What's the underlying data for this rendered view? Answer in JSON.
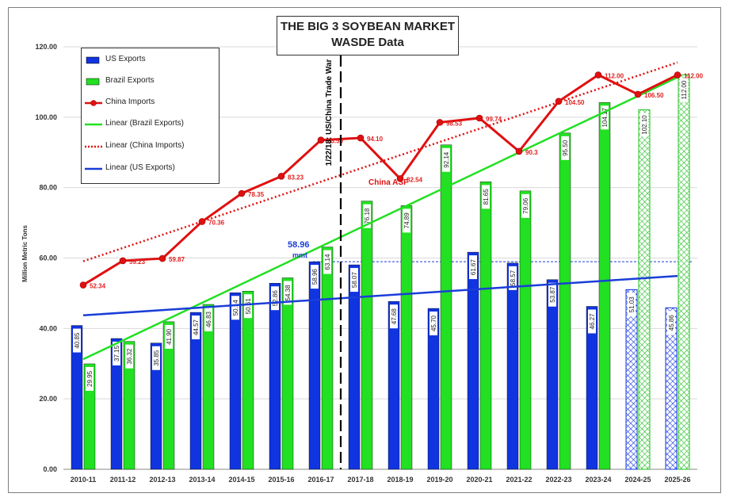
{
  "title": {
    "line1": "THE BIG 3 SOYBEAN MARKET",
    "line2": "WASDE Data"
  },
  "legend": [
    {
      "label": "US Exports",
      "kind": "bar",
      "color": "#1034e0"
    },
    {
      "label": "Brazil Exports",
      "kind": "bar",
      "color": "#22e022"
    },
    {
      "label": "China Imports",
      "kind": "marker-line",
      "color": "#e01010"
    },
    {
      "label": "Linear (Brazil Exports)",
      "kind": "line",
      "color": "#22e022"
    },
    {
      "label": "Linear (China Imports)",
      "kind": "dotted",
      "color": "#e01010"
    },
    {
      "label": "Linear (US Exports)",
      "kind": "line",
      "color": "#1a3ed8"
    }
  ],
  "chart_data": {
    "type": "bar",
    "categories": [
      "2010-11",
      "2011-12",
      "2012-13",
      "2013-14",
      "2014-15",
      "2015-16",
      "2016-17",
      "2017-18",
      "2018-19",
      "2019-20",
      "2020-21",
      "2021-22",
      "2022-23",
      "2023-24",
      "2024-25",
      "2025-26"
    ],
    "ylabel": "Million Metric Tons",
    "ylim": [
      0,
      120
    ],
    "yticks": [
      "0.00",
      "20.00",
      "40.00",
      "60.00",
      "80.00",
      "100.00",
      "120.00"
    ],
    "series": [
      {
        "name": "US Exports",
        "values": [
          40.85,
          37.15,
          35.85,
          44.57,
          50.14,
          52.86,
          58.96,
          58.07,
          47.68,
          45.7,
          61.67,
          58.57,
          53.87,
          46.27,
          51.03,
          45.86
        ],
        "labels": [
          "40.85",
          "37.15",
          "35.85",
          "44.57",
          "50.14",
          "52.86",
          "58.96",
          "58.07",
          "47.68",
          "45.70",
          "61.67",
          "58.57",
          "53.87",
          "46.27",
          "51.03",
          "45.86"
        ]
      },
      {
        "name": "Brazil Exports",
        "values": [
          29.95,
          36.32,
          41.9,
          46.83,
          50.61,
          54.38,
          63.14,
          76.18,
          74.89,
          92.14,
          81.65,
          79.06,
          95.5,
          104.17,
          102.1,
          112.0
        ],
        "labels": [
          "29.95",
          "36.32",
          "41.90",
          "46.83",
          "50.61",
          "54.38",
          "63.14",
          "76.18",
          "74.89",
          "92.14",
          "81.65",
          "79.06",
          "95.50",
          "104.17",
          "102.10",
          "112.00"
        ]
      },
      {
        "name": "China Imports",
        "values": [
          52.34,
          59.23,
          59.87,
          70.36,
          78.35,
          83.23,
          93.5,
          94.1,
          82.54,
          98.53,
          99.74,
          90.3,
          104.5,
          112.0,
          106.5,
          112.0
        ],
        "labels": [
          "52.34",
          "59.23",
          "59.87",
          "70.36",
          "78.35",
          "83.23",
          "93.50",
          "94.10",
          "82.54",
          "98.53",
          "99.74",
          "90.3",
          "104.50",
          "112.00",
          "106.50",
          "112.00"
        ]
      }
    ],
    "projected_from_index": 14,
    "reference_line": {
      "value": 58.96,
      "label": "58.96",
      "unit": "mmt"
    },
    "annotations": [
      {
        "text": "1/22/18: US/China Trade War",
        "at_category_gap": 6.5
      },
      {
        "text": "China ASF",
        "near_category": 8
      }
    ],
    "colors": {
      "us": "#1034e0",
      "brazil": "#22e022",
      "china": "#e01010",
      "us_trend": "#1a3ed8"
    }
  }
}
